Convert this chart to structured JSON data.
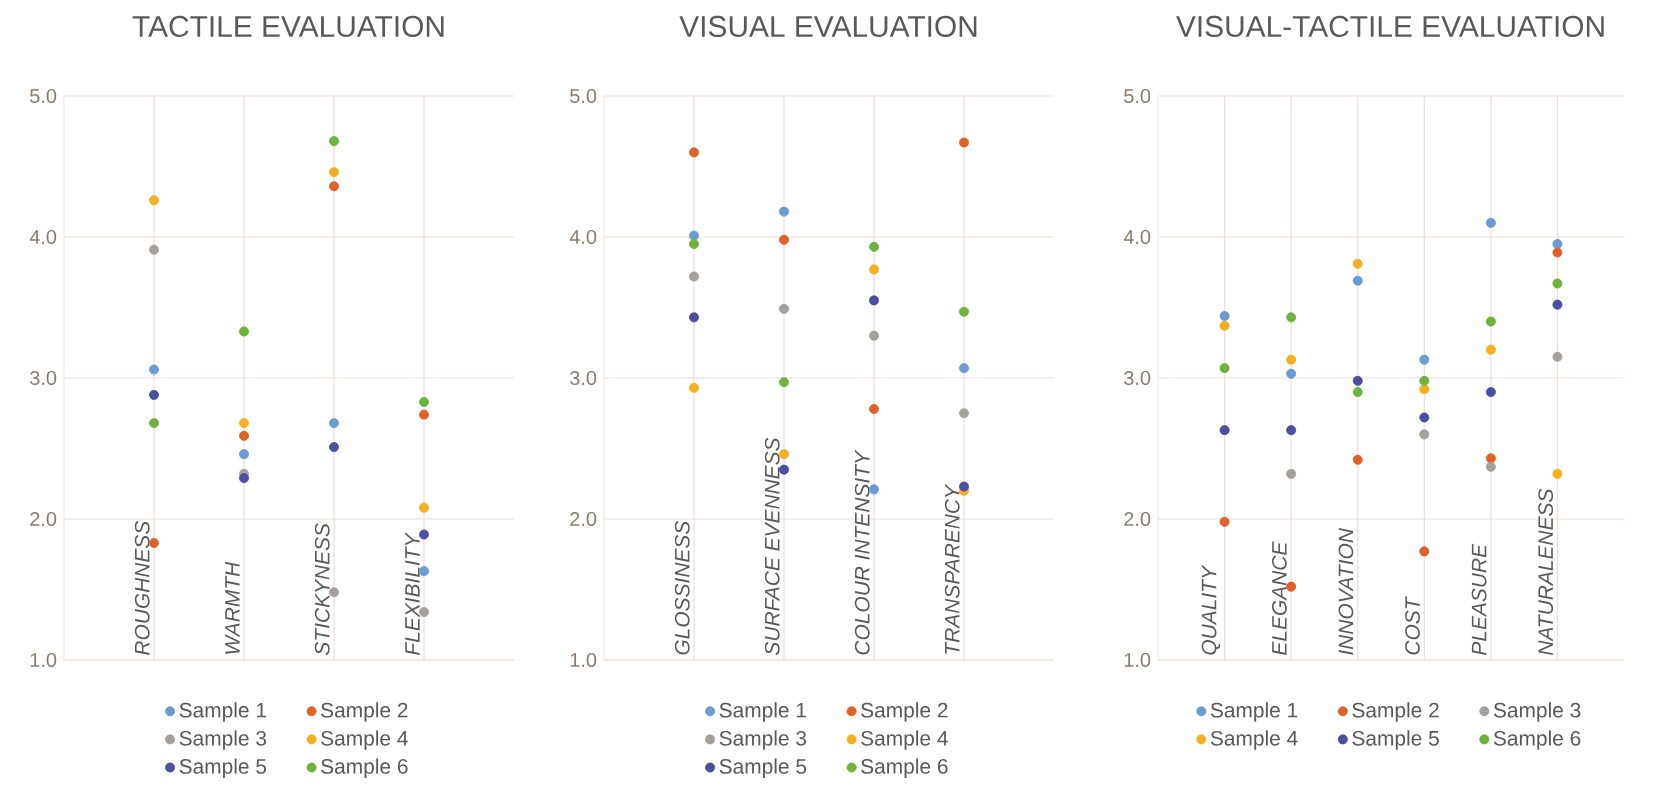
{
  "chart_data": [
    {
      "type": "scatter",
      "title": "TACTILE EVALUATION",
      "categories": [
        "ROUGHNESS",
        "WARMTH",
        "STICKYNESS",
        "FLEXIBILITY"
      ],
      "series": [
        {
          "name": "Sample 1",
          "color": "#6b9bd2",
          "values": [
            3.06,
            2.46,
            2.68,
            1.63
          ]
        },
        {
          "name": "Sample 2",
          "color": "#e0622a",
          "values": [
            1.83,
            2.59,
            4.36,
            2.74
          ]
        },
        {
          "name": "Sample 3",
          "color": "#a5a09a",
          "values": [
            3.91,
            2.32,
            1.48,
            1.34
          ]
        },
        {
          "name": "Sample 4",
          "color": "#f5b021",
          "values": [
            4.26,
            2.68,
            4.46,
            2.08
          ]
        },
        {
          "name": "Sample 5",
          "color": "#4b4fa0",
          "values": [
            2.88,
            2.29,
            2.51,
            1.89
          ]
        },
        {
          "name": "Sample 6",
          "color": "#6fb33d",
          "values": [
            2.68,
            3.33,
            4.68,
            2.83
          ]
        }
      ],
      "ylim": [
        1,
        5
      ],
      "yticks": [
        {
          "value": 1,
          "label": "1.0"
        },
        {
          "value": 2,
          "label": "2.0"
        },
        {
          "value": 3,
          "label": "3.0"
        },
        {
          "value": 4,
          "label": "4.0"
        },
        {
          "value": 5,
          "label": "5.0"
        }
      ],
      "grid": true,
      "legend": "bottom"
    },
    {
      "type": "scatter",
      "title": "VISUAL EVALUATION",
      "categories": [
        "GLOSSINESS",
        "SURFACE EVENNESS",
        "COLOUR INTENSITY",
        "TRANSPARENCY"
      ],
      "series": [
        {
          "name": "Sample 1",
          "color": "#6b9bd2",
          "values": [
            4.01,
            4.18,
            2.21,
            3.07
          ]
        },
        {
          "name": "Sample 2",
          "color": "#e0622a",
          "values": [
            4.6,
            3.98,
            2.78,
            4.67
          ]
        },
        {
          "name": "Sample 3",
          "color": "#a5a09a",
          "values": [
            3.72,
            3.49,
            3.3,
            2.75
          ]
        },
        {
          "name": "Sample 4",
          "color": "#f5b021",
          "values": [
            2.93,
            2.46,
            3.77,
            2.2
          ]
        },
        {
          "name": "Sample 5",
          "color": "#4b4fa0",
          "values": [
            3.43,
            2.35,
            3.55,
            2.23
          ]
        },
        {
          "name": "Sample 6",
          "color": "#6fb33d",
          "values": [
            3.95,
            2.97,
            3.93,
            3.47
          ]
        }
      ],
      "ylim": [
        1,
        5
      ],
      "yticks": [
        {
          "value": 1,
          "label": "1.0"
        },
        {
          "value": 2,
          "label": "2.0"
        },
        {
          "value": 3,
          "label": "3.0"
        },
        {
          "value": 4,
          "label": "4.0"
        },
        {
          "value": 5,
          "label": "5.0"
        }
      ],
      "grid": true,
      "legend": "bottom"
    },
    {
      "type": "scatter",
      "title": "VISUAL-TACTILE EVALUATION",
      "categories": [
        "QUALITY",
        "ELEGANCE",
        "INNOVATION",
        "COST",
        "PLEASURE",
        "NATURALENESS"
      ],
      "series": [
        {
          "name": "Sample 1",
          "color": "#6b9bd2",
          "values": [
            3.44,
            3.03,
            3.69,
            3.13,
            4.1,
            3.95
          ]
        },
        {
          "name": "Sample 2",
          "color": "#e0622a",
          "values": [
            1.98,
            1.52,
            2.42,
            1.77,
            2.43,
            3.89
          ]
        },
        {
          "name": "Sample 3",
          "color": "#a5a09a",
          "values": [
            null,
            2.32,
            null,
            2.6,
            2.37,
            3.15
          ]
        },
        {
          "name": "Sample 4",
          "color": "#f5b021",
          "values": [
            3.37,
            3.13,
            3.81,
            2.92,
            3.2,
            2.32
          ]
        },
        {
          "name": "Sample 5",
          "color": "#4b4fa0",
          "values": [
            2.63,
            2.63,
            2.98,
            2.72,
            2.9,
            3.52
          ]
        },
        {
          "name": "Sample 6",
          "color": "#6fb33d",
          "values": [
            3.07,
            3.43,
            2.9,
            2.98,
            3.4,
            3.67
          ]
        }
      ],
      "ylim": [
        1,
        5
      ],
      "yticks": [
        {
          "value": 1,
          "label": "1.0"
        },
        {
          "value": 2,
          "label": "2.0"
        },
        {
          "value": 3,
          "label": "3.0"
        },
        {
          "value": 4,
          "label": "4.0"
        },
        {
          "value": 5,
          "label": "5.0"
        }
      ],
      "grid": true,
      "legend": "bottom"
    }
  ]
}
